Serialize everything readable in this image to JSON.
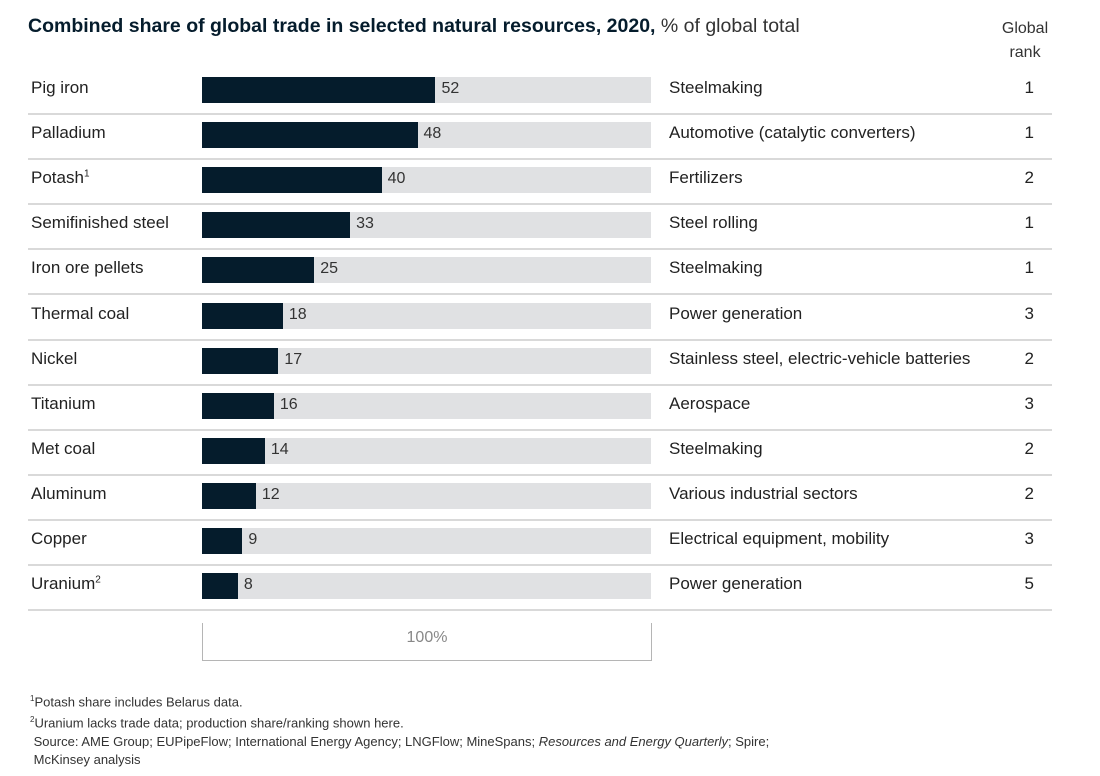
{
  "chart_data": {
    "type": "bar",
    "orientation": "horizontal",
    "title": "Combined share of global trade in selected natural resources, 2020,",
    "unit": "% of global total",
    "xlim": [
      0,
      100
    ],
    "scale_label": "100%",
    "rank_header": [
      "Global",
      "rank"
    ],
    "colors": {
      "bar": "#051c2c",
      "track": "#e0e1e3"
    },
    "rows": [
      {
        "label": "Pig iron",
        "sup": "",
        "value": 52,
        "use": "Steelmaking",
        "rank": 1
      },
      {
        "label": "Palladium",
        "sup": "",
        "value": 48,
        "use": "Automotive (catalytic converters)",
        "rank": 1
      },
      {
        "label": "Potash",
        "sup": "1",
        "value": 40,
        "use": "Fertilizers",
        "rank": 2
      },
      {
        "label": "Semifinished steel",
        "sup": "",
        "value": 33,
        "use": "Steel rolling",
        "rank": 1
      },
      {
        "label": "Iron ore pellets",
        "sup": "",
        "value": 25,
        "use": "Steelmaking",
        "rank": 1
      },
      {
        "label": "Thermal coal",
        "sup": "",
        "value": 18,
        "use": "Power generation",
        "rank": 3
      },
      {
        "label": "Nickel",
        "sup": "",
        "value": 17,
        "use": "Stainless steel, electric-vehicle batteries",
        "rank": 2
      },
      {
        "label": "Titanium",
        "sup": "",
        "value": 16,
        "use": "Aerospace",
        "rank": 3
      },
      {
        "label": "Met coal",
        "sup": "",
        "value": 14,
        "use": "Steelmaking",
        "rank": 2
      },
      {
        "label": "Aluminum",
        "sup": "",
        "value": 12,
        "use": "Various industrial sectors",
        "rank": 2
      },
      {
        "label": "Copper",
        "sup": "",
        "value": 9,
        "use": "Electrical equipment, mobility",
        "rank": 3
      },
      {
        "label": "Uranium",
        "sup": "2",
        "value": 8,
        "use": "Power generation",
        "rank": 5
      }
    ]
  },
  "footnotes": {
    "n1": "Potash share includes Belarus data.",
    "n2": "Uranium lacks trade data; production share/ranking shown here.",
    "source_prefix": "Source: AME Group; EUPipeFlow; International Energy Agency; LNGFlow; MineSpans; ",
    "source_italic": "Resources and Energy Quarterly",
    "source_suffix": "; Spire;",
    "source_line2": "McKinsey analysis"
  }
}
